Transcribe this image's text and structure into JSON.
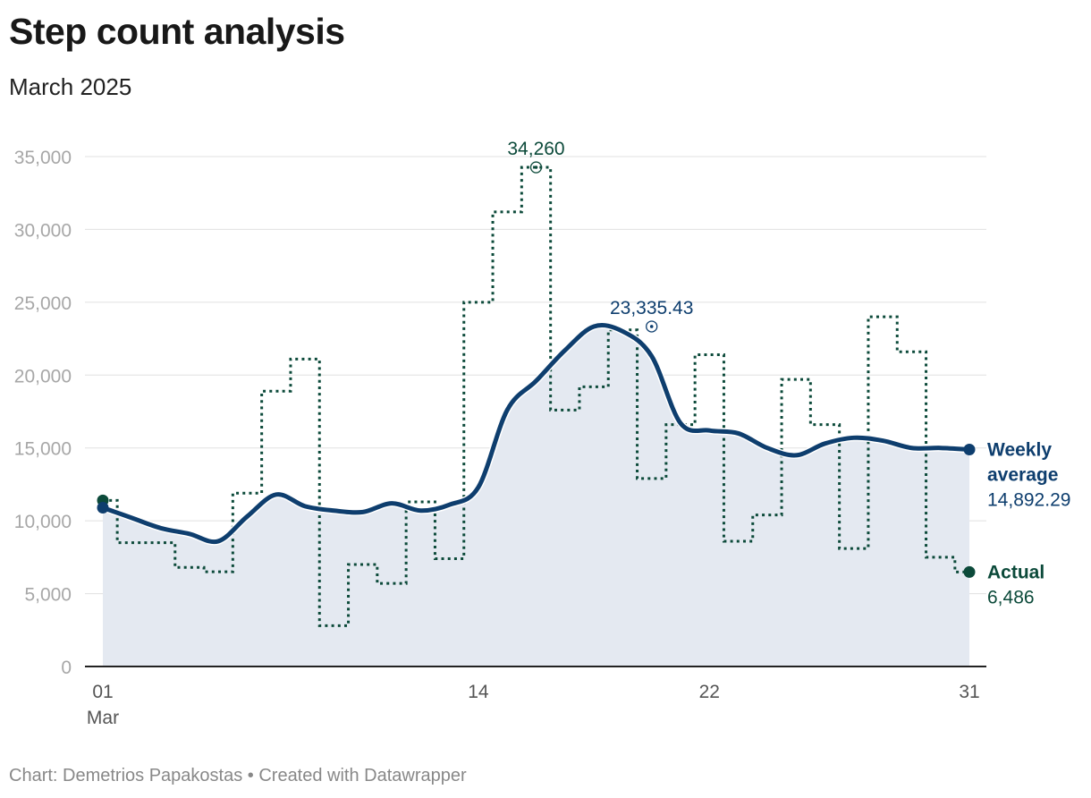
{
  "title": "Step count analysis",
  "subtitle": "March 2025",
  "footer": "Chart: Demetrios Papakostas • Created with Datawrapper",
  "colors": {
    "average": "#0e3e6e",
    "actual": "#0c4a3a",
    "area": "#e4e9f1",
    "grid": "#e0e0e0",
    "axis": "#222222"
  },
  "chart_data": {
    "type": "line",
    "title": "Step count analysis",
    "subtitle": "March 2025",
    "xlabel": "",
    "ylabel": "",
    "xlim": [
      1,
      31
    ],
    "ylim": [
      0,
      35000
    ],
    "y_ticks": [
      0,
      5000,
      10000,
      15000,
      20000,
      25000,
      30000,
      35000
    ],
    "y_tick_labels": [
      "0",
      "5,000",
      "10,000",
      "15,000",
      "20,000",
      "25,000",
      "30,000",
      "35,000"
    ],
    "x_ticks": [
      1,
      14,
      22,
      31
    ],
    "x_tick_labels": [
      "01",
      "14",
      "22",
      "31"
    ],
    "x_tick_sublabel": "Mar",
    "series": [
      {
        "name": "Actual",
        "style": "dotted step",
        "x": [
          1,
          2,
          3,
          4,
          5,
          6,
          7,
          8,
          9,
          10,
          11,
          12,
          13,
          14,
          15,
          16,
          17,
          18,
          19,
          20,
          21,
          22,
          23,
          24,
          25,
          26,
          27,
          28,
          29,
          30,
          31
        ],
        "values": [
          11400,
          8500,
          8500,
          6800,
          6500,
          11900,
          18900,
          21100,
          2800,
          7000,
          5700,
          11300,
          7400,
          25000,
          31200,
          34260,
          17600,
          19200,
          23100,
          12900,
          16600,
          21400,
          8600,
          10400,
          19700,
          16600,
          8100,
          24000,
          21600,
          7500,
          6486
        ]
      },
      {
        "name": "Weekly average",
        "style": "smooth line with area",
        "x": [
          1,
          2,
          3,
          4,
          5,
          6,
          7,
          8,
          9,
          10,
          11,
          12,
          13,
          14,
          15,
          16,
          17,
          18,
          19,
          20,
          21,
          22,
          23,
          24,
          25,
          26,
          27,
          28,
          29,
          30,
          31
        ],
        "values": [
          10900,
          10200,
          9500,
          9100,
          8600,
          10300,
          11800,
          11000,
          10700,
          10600,
          11200,
          10700,
          11100,
          12300,
          17600,
          19600,
          21700,
          23335.43,
          23000,
          21300,
          16700,
          16200,
          16000,
          15000,
          14500,
          15300,
          15700,
          15500,
          15000,
          15000,
          14892.29
        ]
      }
    ],
    "annotations": [
      {
        "text": "34,260",
        "x": 16,
        "y": 34260,
        "series": "Actual"
      },
      {
        "text": "23,335.43",
        "x": 20,
        "y": 23335.43,
        "series": "Weekly average"
      }
    ],
    "end_labels": [
      {
        "name_lines": [
          "Weekly",
          "average"
        ],
        "value": "14,892.29",
        "series": "Weekly average"
      },
      {
        "name_lines": [
          "Actual"
        ],
        "value": "6,486",
        "series": "Actual"
      }
    ]
  }
}
